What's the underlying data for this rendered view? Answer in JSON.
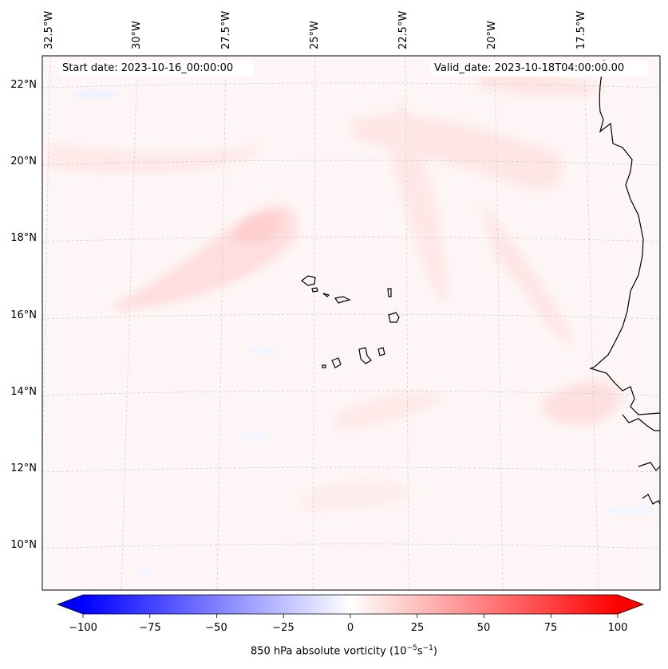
{
  "header": {
    "start_date": "Start date: 2023-10-16_00:00:00",
    "valid_date": "Valid_date: 2023-10-18T04:00:00.00"
  },
  "axes": {
    "lon_labels": [
      "32.5°W",
      "30°W",
      "27.5°W",
      "25°W",
      "22.5°W",
      "20°W",
      "17.5°W"
    ],
    "lat_labels": [
      "22°N",
      "20°N",
      "18°N",
      "16°N",
      "14°N",
      "12°N",
      "10°N"
    ]
  },
  "colorbar": {
    "ticks": [
      "−100",
      "−75",
      "−50",
      "−25",
      "0",
      "25",
      "50",
      "75",
      "100"
    ],
    "label": "850 hPa absolute vorticity (10",
    "label_exp1": "−5",
    "label_mid": "s",
    "label_exp2": "−1",
    "label_end": ")",
    "range": [
      -100,
      100
    ]
  },
  "colors": {
    "negative": "#0000ff",
    "positive": "#ff0000",
    "neutral": "#ffffff",
    "coast": "#000000"
  }
}
